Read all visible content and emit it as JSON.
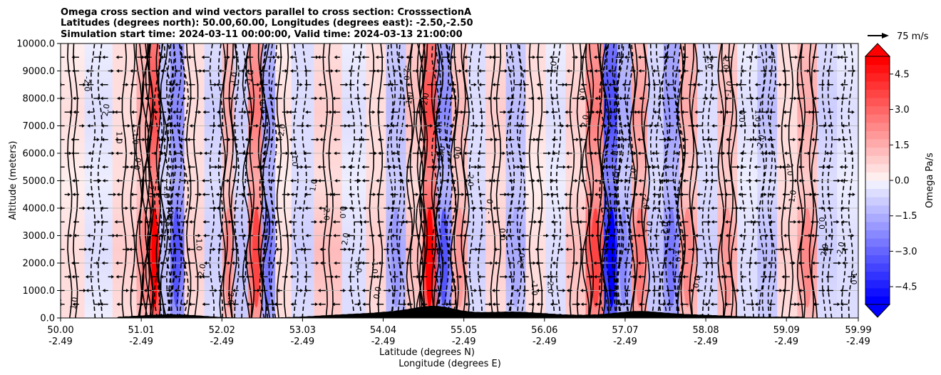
{
  "chart_data": {
    "type": "heatmap",
    "title_lines": [
      "Omega cross section and wind vectors parallel to cross section: CrosssectionA",
      "Latitudes (degrees north): 50.00,60.00, Longitudes (degrees east): -2.50,-2.50",
      "Simulation start time: 2024-03-11 00:00:00, Valid time: 2024-03-13 21:00:00"
    ],
    "ylabel": "Altitude (meters)",
    "xlabel": "Latitude (degrees N)",
    "xlabel2": "Longitude (degrees E)",
    "ylim": [
      0,
      10000
    ],
    "yticks": [
      "0.0",
      "1000.0",
      "2000.0",
      "3000.0",
      "4000.0",
      "5000.0",
      "6000.0",
      "7000.0",
      "8000.0",
      "9000.0",
      "10000.0"
    ],
    "xticks_lat": [
      "50.00",
      "51.01",
      "52.02",
      "53.03",
      "54.04",
      "55.05",
      "56.06",
      "57.07",
      "58.08",
      "59.09",
      "59.99"
    ],
    "xticks_lon": [
      "-2.49",
      "-2.49",
      "-2.49",
      "-2.49",
      "-2.49",
      "-2.49",
      "-2.49",
      "-2.49",
      "-2.49",
      "-2.49",
      "-2.49"
    ],
    "xlim": [
      50.0,
      59.99
    ],
    "colorbar": {
      "label": "Omega Pa/s",
      "range": [
        -5.25,
        5.25
      ],
      "ticks": [
        "4.5",
        "3.0",
        "1.5",
        "0.0",
        "−1.5",
        "−3.0",
        "−4.5"
      ]
    },
    "contour_labels": [
      "0.0",
      "1.0",
      "-1.0",
      "2.0",
      "-2.0"
    ],
    "vector_key": "75 m/s",
    "colors": {
      "positive": "#ff0000",
      "negative": "#0000ff",
      "terrain": "#000000"
    },
    "omega_columns": [
      {
        "lat": 50.15,
        "value": 0.6
      },
      {
        "lat": 50.45,
        "value": -0.5
      },
      {
        "lat": 50.85,
        "value": 0.8
      },
      {
        "lat": 51.05,
        "value": 2.0
      },
      {
        "lat": 51.18,
        "value": 4.8
      },
      {
        "lat": 51.3,
        "value": -1.5
      },
      {
        "lat": 51.45,
        "value": -3.2
      },
      {
        "lat": 51.65,
        "value": 0.9
      },
      {
        "lat": 51.95,
        "value": -1.0
      },
      {
        "lat": 52.1,
        "value": 2.2
      },
      {
        "lat": 52.25,
        "value": -1.2
      },
      {
        "lat": 52.45,
        "value": 3.4
      },
      {
        "lat": 52.6,
        "value": -2.5
      },
      {
        "lat": 52.78,
        "value": 0.6
      },
      {
        "lat": 53.0,
        "value": -0.8
      },
      {
        "lat": 53.35,
        "value": 1.2
      },
      {
        "lat": 53.7,
        "value": -0.6
      },
      {
        "lat": 53.95,
        "value": 0.8
      },
      {
        "lat": 54.2,
        "value": -1.8
      },
      {
        "lat": 54.45,
        "value": 1.5
      },
      {
        "lat": 54.62,
        "value": 5.0
      },
      {
        "lat": 54.8,
        "value": -3.0
      },
      {
        "lat": 55.0,
        "value": 1.8
      },
      {
        "lat": 55.2,
        "value": -0.9
      },
      {
        "lat": 55.45,
        "value": 1.0
      },
      {
        "lat": 55.7,
        "value": -1.6
      },
      {
        "lat": 55.95,
        "value": 0.7
      },
      {
        "lat": 56.2,
        "value": -0.6
      },
      {
        "lat": 56.45,
        "value": 1.2
      },
      {
        "lat": 56.7,
        "value": 3.5
      },
      {
        "lat": 56.9,
        "value": -4.8
      },
      {
        "lat": 57.05,
        "value": -2.0
      },
      {
        "lat": 57.25,
        "value": 2.5
      },
      {
        "lat": 57.45,
        "value": -1.2
      },
      {
        "lat": 57.65,
        "value": -2.6
      },
      {
        "lat": 57.85,
        "value": 2.0
      },
      {
        "lat": 58.1,
        "value": -0.8
      },
      {
        "lat": 58.35,
        "value": 1.8
      },
      {
        "lat": 58.6,
        "value": -0.6
      },
      {
        "lat": 58.85,
        "value": -1.5
      },
      {
        "lat": 59.1,
        "value": 0.8
      },
      {
        "lat": 59.35,
        "value": 2.0
      },
      {
        "lat": 59.6,
        "value": -1.0
      },
      {
        "lat": 59.85,
        "value": -0.6
      }
    ]
  }
}
